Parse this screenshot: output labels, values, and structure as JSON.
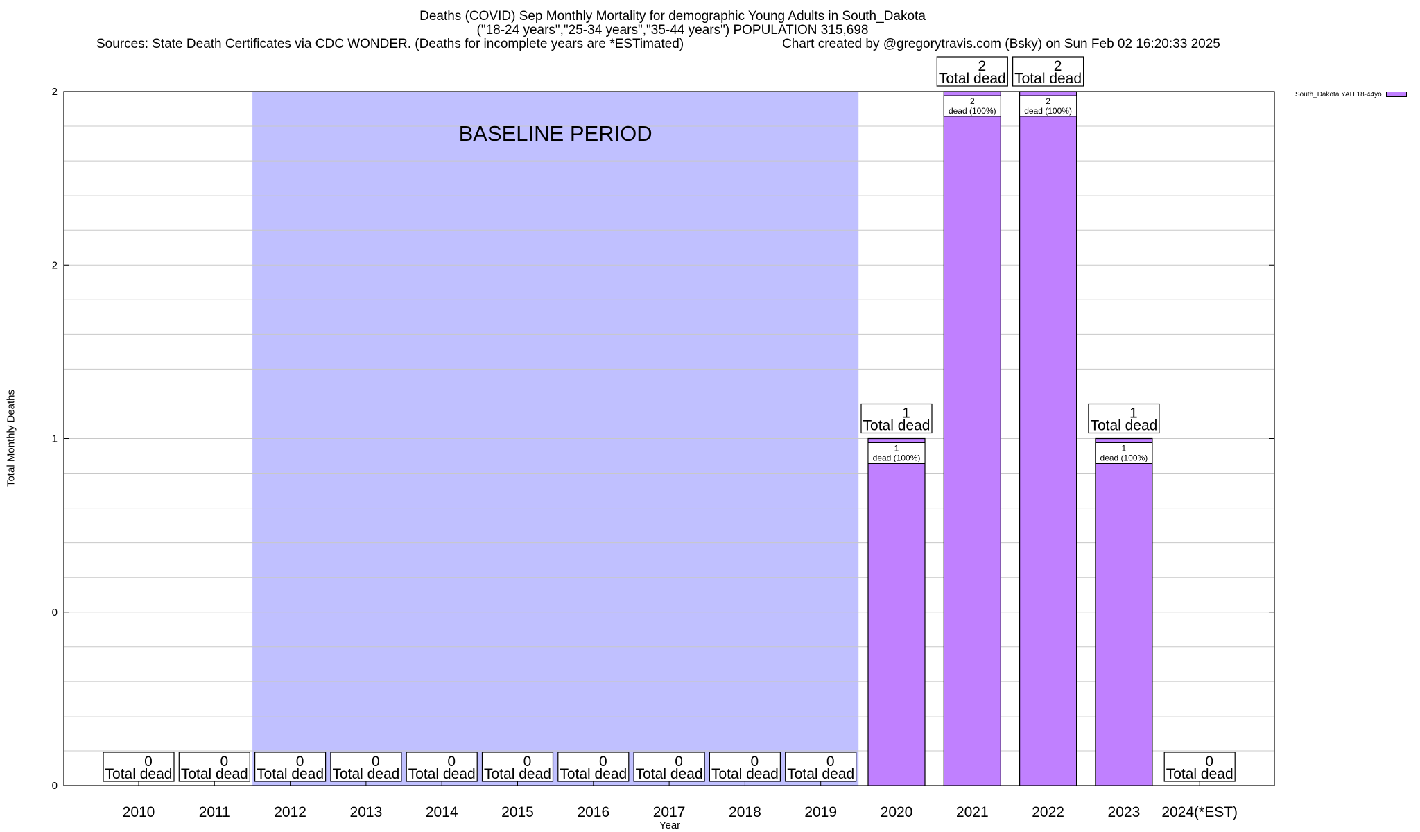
{
  "chart_data": {
    "type": "bar",
    "title_line1": "Deaths (COVID) Sep Monthly Mortality for demographic Young Adults in South_Dakota",
    "title_line2": "(\"18-24 years\",\"25-34 years\",\"35-44 years\") POPULATION 315,698",
    "sources": "Sources: State Death Certificates via CDC WONDER. (Deaths for incomplete years are *ESTimated)",
    "credit": "Chart created by @gregorytravis.com (Bsky) on Sun Feb 02 16:20:33 2025",
    "xlabel": "Year",
    "ylabel": "Total Monthly Deaths",
    "ylim": [
      0,
      2
    ],
    "y_tick_labels": [
      "0",
      "0",
      "1",
      "2",
      "2"
    ],
    "categories": [
      "2010",
      "2011",
      "2012",
      "2013",
      "2014",
      "2015",
      "2016",
      "2017",
      "2018",
      "2019",
      "2020",
      "2021",
      "2022",
      "2023",
      "2024(*EST)"
    ],
    "series": [
      {
        "name": "South_Dakota YAH 18-44yo",
        "color": "#c080ff",
        "values": [
          0,
          0,
          0,
          0,
          0,
          0,
          0,
          0,
          0,
          0,
          1,
          2,
          2,
          1,
          0
        ]
      }
    ],
    "total_label": "Total dead",
    "segment_label": "dead (100%)",
    "baseline": {
      "label": "BASELINE PERIOD",
      "from": "2012",
      "to": "2019",
      "color": "#c0c0ff"
    },
    "grid": true,
    "legend_position": "top-right"
  }
}
